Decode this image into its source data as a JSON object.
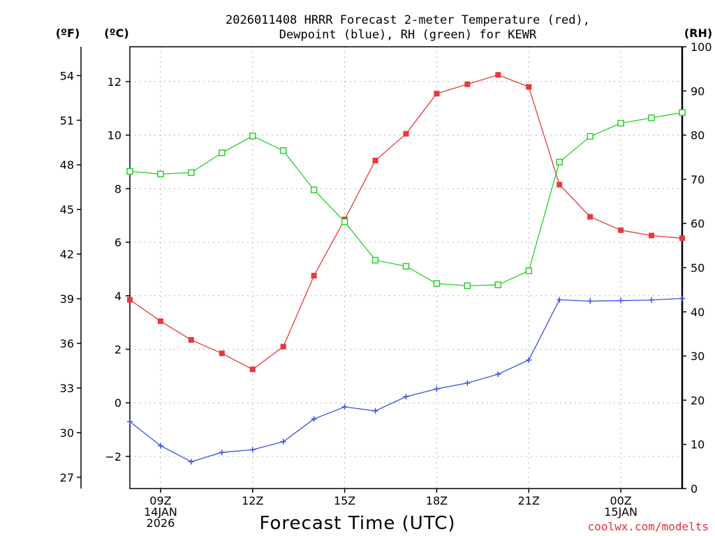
{
  "chart_data": {
    "type": "line",
    "title_lines": [
      "2026011408 HRRR Forecast 2-meter Temperature (red),",
      "Dewpoint (blue), RH (green) for KEWR"
    ],
    "xlabel": "Forecast Time (UTC)",
    "credit": "coolwx.com/modelts",
    "left_outer_axis": {
      "unit": "(ºF)",
      "ticks": [
        27,
        30,
        33,
        36,
        39,
        42,
        45,
        48,
        51,
        54
      ]
    },
    "left_inner_axis": {
      "unit": "(ºC)",
      "ticks": [
        -2,
        0,
        2,
        4,
        6,
        8,
        10,
        12
      ],
      "ylim": [
        -3.2,
        13.3
      ]
    },
    "right_axis": {
      "unit": "(RH)",
      "ticks": [
        0,
        10,
        20,
        30,
        40,
        50,
        60,
        70,
        80,
        90,
        100
      ],
      "ylim": [
        0,
        100
      ]
    },
    "x_range": [
      8,
      26
    ],
    "x_ticks": [
      {
        "x": 9,
        "lines": [
          "09Z",
          "14JAN",
          "2026"
        ]
      },
      {
        "x": 12,
        "lines": [
          "12Z"
        ]
      },
      {
        "x": 15,
        "lines": [
          "15Z"
        ]
      },
      {
        "x": 18,
        "lines": [
          "18Z"
        ]
      },
      {
        "x": 21,
        "lines": [
          "21Z"
        ]
      },
      {
        "x": 24,
        "lines": [
          "00Z",
          "15JAN"
        ]
      }
    ],
    "x_grid": [
      9,
      12,
      15,
      18,
      21,
      24
    ],
    "c_grid": [
      -2,
      0,
      2,
      4,
      6,
      8,
      10,
      12
    ],
    "x": [
      8,
      9,
      10,
      11,
      12,
      13,
      14,
      15,
      16,
      17,
      18,
      19,
      20,
      21,
      22,
      23,
      24,
      25,
      26
    ],
    "series": [
      {
        "name": "2-meter Temperature",
        "color": "#e8383c",
        "marker": "filled-square",
        "axis": "celsius",
        "values": [
          3.85,
          3.05,
          2.35,
          1.85,
          1.25,
          2.1,
          4.75,
          6.85,
          9.05,
          10.05,
          11.55,
          11.9,
          12.25,
          11.8,
          8.15,
          6.95,
          6.45,
          6.25,
          6.15
        ]
      },
      {
        "name": "Dewpoint",
        "color": "#3a50e0",
        "marker": "plus",
        "axis": "celsius",
        "values": [
          -0.7,
          -1.6,
          -2.2,
          -1.85,
          -1.75,
          -1.45,
          -0.6,
          -0.15,
          -0.3,
          0.23,
          0.52,
          0.74,
          1.07,
          1.6,
          3.85,
          3.8,
          3.82,
          3.84,
          3.9
        ]
      },
      {
        "name": "Relative Humidity",
        "color": "#28d028",
        "marker": "open-square",
        "axis": "rh",
        "values": [
          71.8,
          71.2,
          71.5,
          76.0,
          79.8,
          76.5,
          67.6,
          60.4,
          51.7,
          50.3,
          46.4,
          45.9,
          46.1,
          49.3,
          73.9,
          79.7,
          82.7,
          83.9,
          85.1
        ]
      }
    ]
  }
}
